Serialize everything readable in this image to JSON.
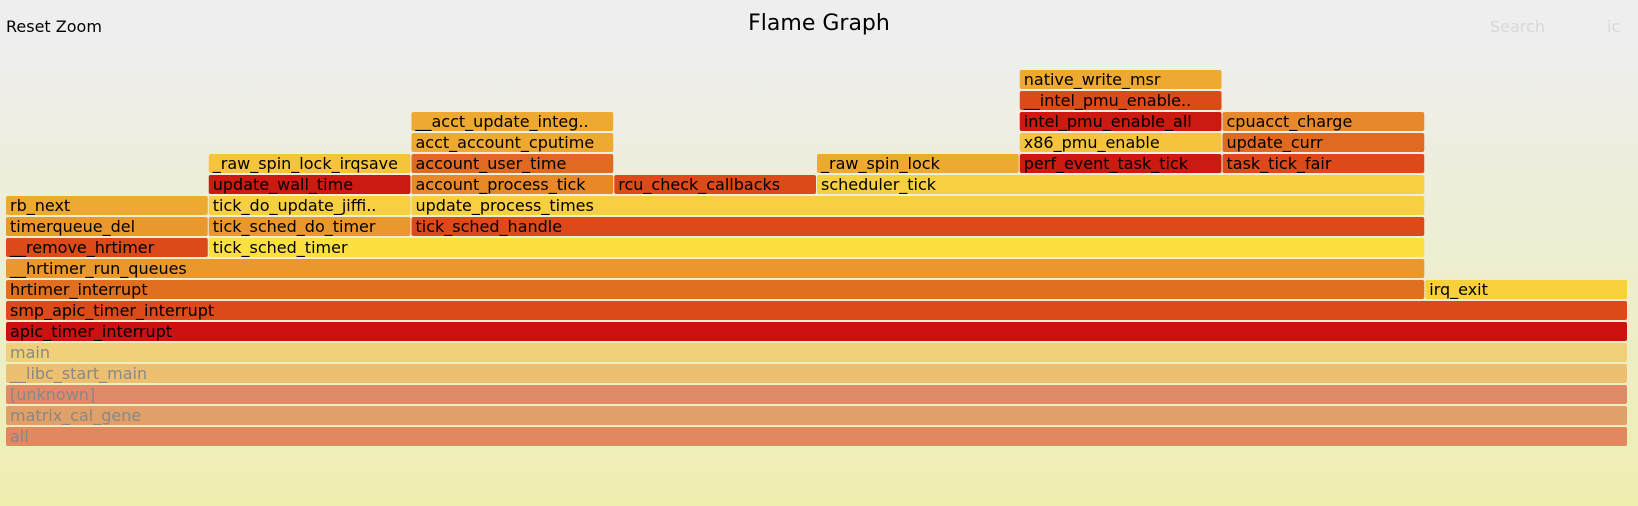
{
  "header": {
    "title": "Flame Graph",
    "reset_zoom": "Reset Zoom",
    "search": "Search",
    "ignore_case": "ic"
  },
  "chart_data": {
    "type": "flame",
    "title": "Flame Graph",
    "x_unit": "fraction of samples",
    "frames": [
      {
        "name": "all",
        "depth": 0,
        "start": 0.0,
        "width": 1.0,
        "color": "#e08860",
        "dim": true
      },
      {
        "name": "matrix_cal_gene",
        "depth": 1,
        "start": 0.0,
        "width": 1.0,
        "color": "#e0a068",
        "dim": true
      },
      {
        "name": "[unknown]",
        "depth": 2,
        "start": 0.0,
        "width": 1.0,
        "color": "#e08a68",
        "dim": true
      },
      {
        "name": "__libc_start_main",
        "depth": 3,
        "start": 0.0,
        "width": 1.0,
        "color": "#ecc070",
        "dim": true
      },
      {
        "name": "main",
        "depth": 4,
        "start": 0.0,
        "width": 1.0,
        "color": "#f0d078",
        "dim": true
      },
      {
        "name": "apic_timer_interrupt",
        "depth": 5,
        "start": 0.0,
        "width": 1.0,
        "color": "#cc1111"
      },
      {
        "name": "smp_apic_timer_interrupt",
        "depth": 6,
        "start": 0.0,
        "width": 1.0,
        "color": "#dc4a1a"
      },
      {
        "name": "hrtimer_interrupt",
        "depth": 7,
        "start": 0.0,
        "width": 0.875,
        "color": "#e07020"
      },
      {
        "name": "irq_exit",
        "depth": 7,
        "start": 0.875,
        "width": 0.125,
        "color": "#f7d03c"
      },
      {
        "name": "__hrtimer_run_queues",
        "depth": 8,
        "start": 0.0,
        "width": 0.875,
        "color": "#e8982c"
      },
      {
        "name": "__remove_hrtimer",
        "depth": 9,
        "start": 0.0,
        "width": 0.125,
        "color": "#dc4a1a"
      },
      {
        "name": "tick_sched_timer",
        "depth": 9,
        "start": 0.125,
        "width": 0.75,
        "color": "#fbe040"
      },
      {
        "name": "timerqueue_del",
        "depth": 10,
        "start": 0.0,
        "width": 0.125,
        "color": "#e8982c"
      },
      {
        "name": "tick_sched_do_timer",
        "depth": 10,
        "start": 0.125,
        "width": 0.125,
        "color": "#e8982c"
      },
      {
        "name": "tick_sched_handle",
        "depth": 10,
        "start": 0.25,
        "width": 0.625,
        "color": "#dc4a1a"
      },
      {
        "name": "rb_next",
        "depth": 11,
        "start": 0.0,
        "width": 0.125,
        "color": "#eeaa30"
      },
      {
        "name": "tick_do_update_jiffi..",
        "depth": 11,
        "start": 0.125,
        "width": 0.125,
        "color": "#f6d040"
      },
      {
        "name": "update_process_times",
        "depth": 11,
        "start": 0.25,
        "width": 0.625,
        "color": "#f6d040"
      },
      {
        "name": "update_wall_time",
        "depth": 12,
        "start": 0.125,
        "width": 0.125,
        "color": "#cc1a10"
      },
      {
        "name": "account_process_tick",
        "depth": 12,
        "start": 0.25,
        "width": 0.125,
        "color": "#e88828"
      },
      {
        "name": "rcu_check_callbacks",
        "depth": 12,
        "start": 0.375,
        "width": 0.125,
        "color": "#dc4a1a"
      },
      {
        "name": "scheduler_tick",
        "depth": 12,
        "start": 0.5,
        "width": 0.375,
        "color": "#f6d040"
      },
      {
        "name": "_raw_spin_lock_irqsave",
        "depth": 13,
        "start": 0.125,
        "width": 0.125,
        "color": "#f6c43c"
      },
      {
        "name": "account_user_time",
        "depth": 13,
        "start": 0.25,
        "width": 0.125,
        "color": "#e06a20"
      },
      {
        "name": "_raw_spin_lock",
        "depth": 13,
        "start": 0.5,
        "width": 0.125,
        "color": "#eeaa30"
      },
      {
        "name": "perf_event_task_tick",
        "depth": 13,
        "start": 0.625,
        "width": 0.125,
        "color": "#cc1a10"
      },
      {
        "name": "task_tick_fair",
        "depth": 13,
        "start": 0.75,
        "width": 0.125,
        "color": "#dc4a1a"
      },
      {
        "name": "acct_account_cputime",
        "depth": 14,
        "start": 0.25,
        "width": 0.125,
        "color": "#eeaa30"
      },
      {
        "name": "x86_pmu_enable",
        "depth": 14,
        "start": 0.625,
        "width": 0.125,
        "color": "#f6c43c"
      },
      {
        "name": "update_curr",
        "depth": 14,
        "start": 0.75,
        "width": 0.125,
        "color": "#e06a20"
      },
      {
        "name": "__acct_update_integ..",
        "depth": 15,
        "start": 0.25,
        "width": 0.125,
        "color": "#eeaa30"
      },
      {
        "name": "intel_pmu_enable_all",
        "depth": 15,
        "start": 0.625,
        "width": 0.125,
        "color": "#cc1a10"
      },
      {
        "name": "cpuacct_charge",
        "depth": 15,
        "start": 0.75,
        "width": 0.125,
        "color": "#e8882c"
      },
      {
        "name": "__intel_pmu_enable..",
        "depth": 16,
        "start": 0.625,
        "width": 0.125,
        "color": "#dc4a1a"
      },
      {
        "name": "native_write_msr",
        "depth": 17,
        "start": 0.625,
        "width": 0.125,
        "color": "#eeaa30"
      }
    ]
  }
}
